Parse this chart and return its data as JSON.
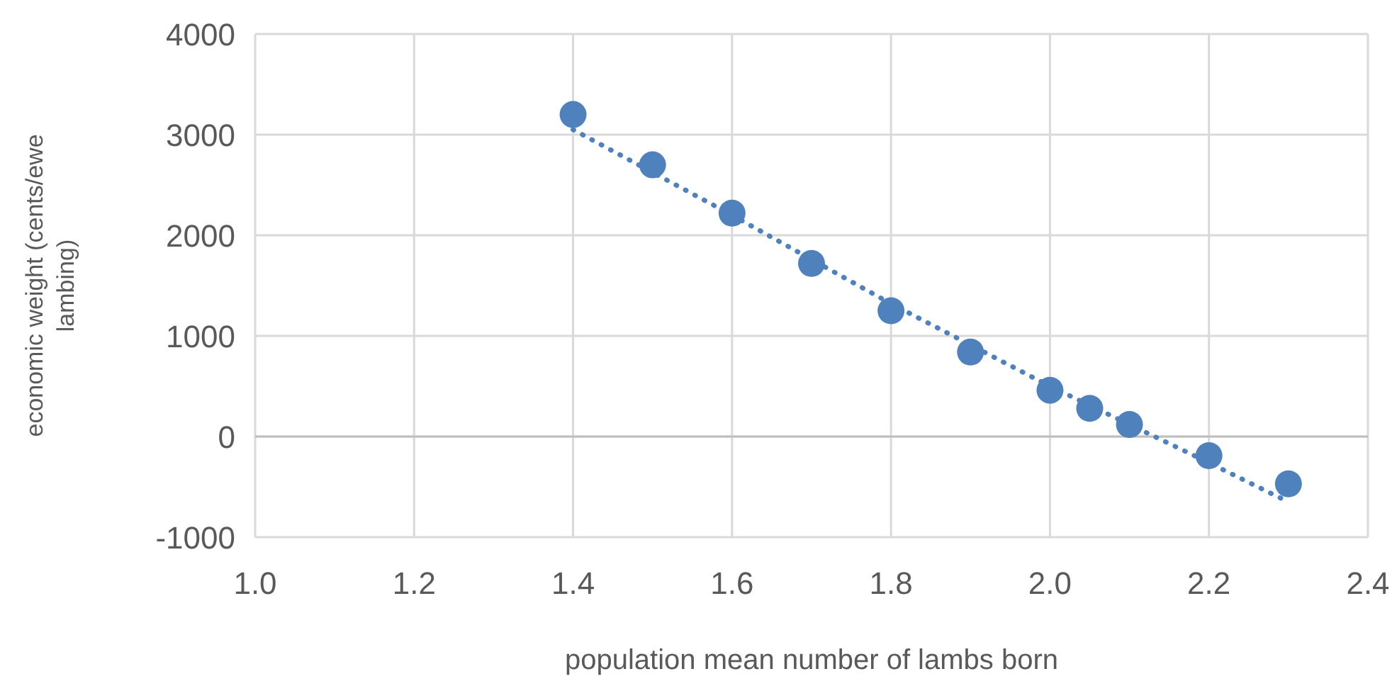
{
  "chart_data": {
    "type": "scatter",
    "xlabel": "population mean number of lambs born",
    "ylabel": "economic weight (cents/ewe lambing)",
    "x": [
      1.4,
      1.5,
      1.6,
      1.7,
      1.8,
      1.9,
      2.0,
      2.05,
      2.1,
      2.2,
      2.3
    ],
    "series": [
      {
        "color": "#4f81bd",
        "marker": "circle",
        "values": [
          3200,
          2700,
          2220,
          1720,
          1250,
          840,
          460,
          280,
          120,
          -190,
          -470
        ]
      },
      {
        "type": "line",
        "color": "#4f81bd",
        "line_style": "dotted",
        "marker": "none",
        "x": [
          1.4,
          1.6,
          1.8,
          2.0,
          2.2,
          2.3
        ],
        "values": [
          3050,
          2200,
          1320,
          500,
          -260,
          -650
        ]
      }
    ],
    "xlim": [
      1.0,
      2.4
    ],
    "xticks": [
      {
        "value": 1.0,
        "label": "1.0"
      },
      1.2,
      1.4,
      1.6,
      1.8,
      {
        "value": 2.0,
        "label": "2.0"
      },
      2.2,
      2.4
    ],
    "ylim": [
      -1000,
      4000
    ],
    "yticks": [
      -1000,
      0,
      1000,
      2000,
      3000,
      4000
    ],
    "grid": true
  }
}
